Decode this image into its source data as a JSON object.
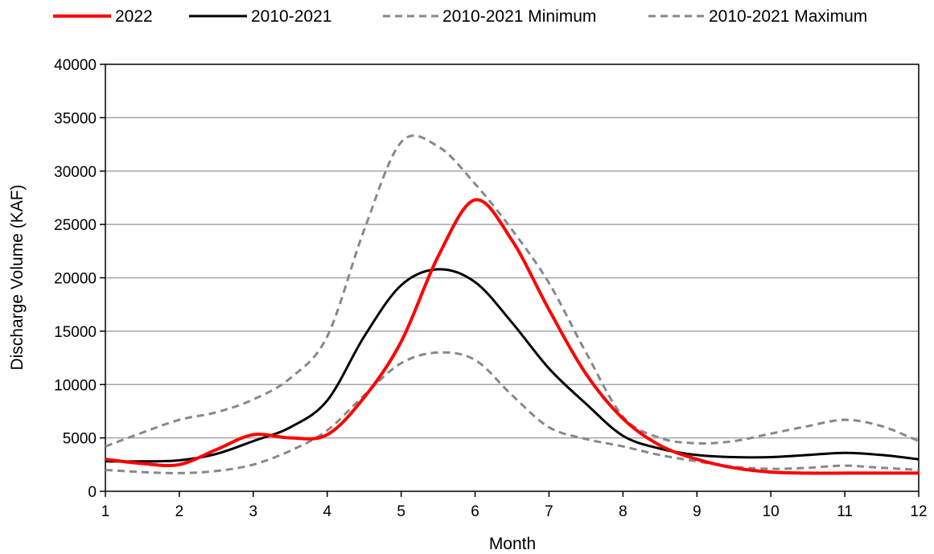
{
  "chart_data": {
    "type": "line",
    "title": "",
    "xlabel": "Month",
    "ylabel": "Discharge Volume (KAF)",
    "xlim": [
      1,
      12
    ],
    "ylim": [
      0,
      40000
    ],
    "xticks": [
      1,
      2,
      3,
      4,
      5,
      6,
      7,
      8,
      9,
      10,
      11,
      12
    ],
    "yticks": [
      0,
      5000,
      10000,
      15000,
      20000,
      25000,
      30000,
      35000,
      40000
    ],
    "grid": "horizontal",
    "legend_position": "top",
    "series": [
      {
        "name": "2022",
        "color": "#ff0000",
        "style": "solid",
        "x": [
          1,
          1.5,
          2,
          2.5,
          3,
          3.5,
          4,
          4.5,
          5,
          5.5,
          6,
          6.5,
          7,
          7.5,
          8,
          8.5,
          9,
          9.5,
          10,
          10.5,
          11,
          11.5,
          12
        ],
        "y": [
          3000,
          2600,
          2500,
          3900,
          5300,
          5000,
          5300,
          8800,
          14000,
          22000,
          27300,
          23500,
          17000,
          11000,
          6800,
          4300,
          3000,
          2200,
          1800,
          1700,
          1700,
          1700,
          1700
        ]
      },
      {
        "name": "2010-2021",
        "color": "#000000",
        "style": "solid",
        "x": [
          1,
          1.5,
          2,
          2.5,
          3,
          3.5,
          4,
          4.5,
          5,
          5.5,
          6,
          6.5,
          7,
          7.5,
          8,
          8.5,
          9,
          9.5,
          10,
          10.5,
          11,
          11.5,
          12
        ],
        "y": [
          2800,
          2800,
          2900,
          3500,
          4700,
          6000,
          8500,
          14500,
          19300,
          20800,
          19600,
          15800,
          11500,
          8200,
          5200,
          4000,
          3400,
          3200,
          3200,
          3400,
          3600,
          3400,
          3000
        ]
      },
      {
        "name": "2010-2021 Minimum",
        "color": "#888888",
        "style": "dashed",
        "x": [
          1,
          1.5,
          2,
          2.5,
          3,
          3.5,
          4,
          4.5,
          5,
          5.5,
          6,
          6.5,
          7,
          7.5,
          8,
          8.5,
          9,
          9.5,
          10,
          10.5,
          11,
          11.5,
          12
        ],
        "y": [
          2000,
          1800,
          1700,
          1900,
          2500,
          3800,
          5700,
          9000,
          12000,
          13000,
          12300,
          9000,
          6000,
          4900,
          4200,
          3400,
          2800,
          2300,
          2100,
          2200,
          2400,
          2200,
          2000
        ]
      },
      {
        "name": "2010-2021 Maximum",
        "color": "#888888",
        "style": "dashed",
        "x": [
          1,
          1.5,
          2,
          2.5,
          3,
          3.5,
          4,
          4.5,
          5,
          5.5,
          6,
          6.5,
          7,
          7.5,
          8,
          8.5,
          9,
          9.5,
          10,
          10.5,
          11,
          11.5,
          12
        ],
        "y": [
          4200,
          5500,
          6700,
          7400,
          8600,
          10600,
          14500,
          24500,
          32700,
          32300,
          28800,
          24500,
          19500,
          13000,
          7000,
          5000,
          4500,
          4700,
          5400,
          6100,
          6700,
          6100,
          4700
        ]
      }
    ]
  }
}
